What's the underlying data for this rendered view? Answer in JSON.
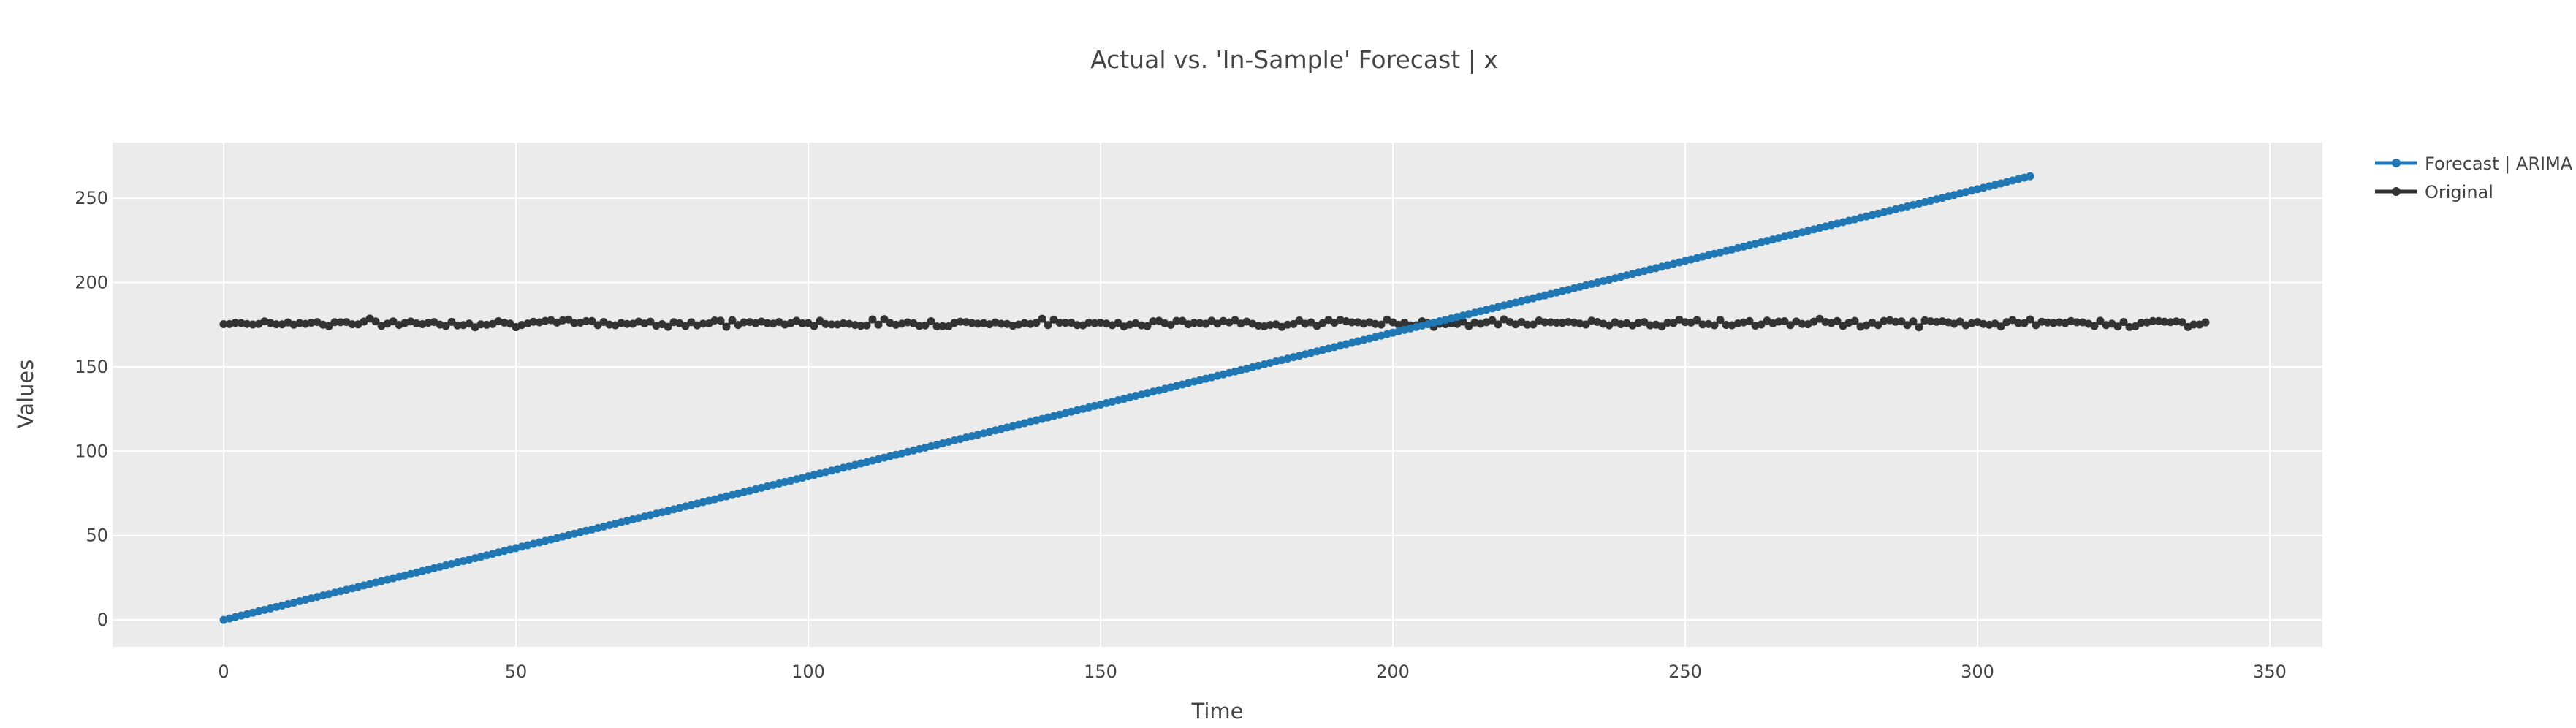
{
  "chart_data": {
    "type": "line",
    "title": "Actual vs. 'In-Sample' Forecast | x",
    "xlabel": "Time",
    "ylabel": "Values",
    "xlim": [
      -19,
      359
    ],
    "ylim": [
      -16,
      283
    ],
    "xticks": [
      0,
      50,
      100,
      150,
      200,
      250,
      300,
      350
    ],
    "yticks": [
      0,
      50,
      100,
      150,
      200,
      250
    ],
    "grid": true,
    "legend_position": "right",
    "series": [
      {
        "name": "Forecast | ARIMA",
        "color": "#1f77b4",
        "mode": "lines+markers",
        "x_start": 0,
        "x_end": 309,
        "y_start": 0,
        "y_end": 263
      },
      {
        "name": "Original",
        "color": "#333333",
        "mode": "lines+markers",
        "x_start": 0,
        "x_end": 339,
        "y_base": 176,
        "y_noise": 1.5
      }
    ]
  },
  "colors": {
    "plot_background": "#ebebeb",
    "grid": "#ffffff",
    "text": "#444444"
  }
}
